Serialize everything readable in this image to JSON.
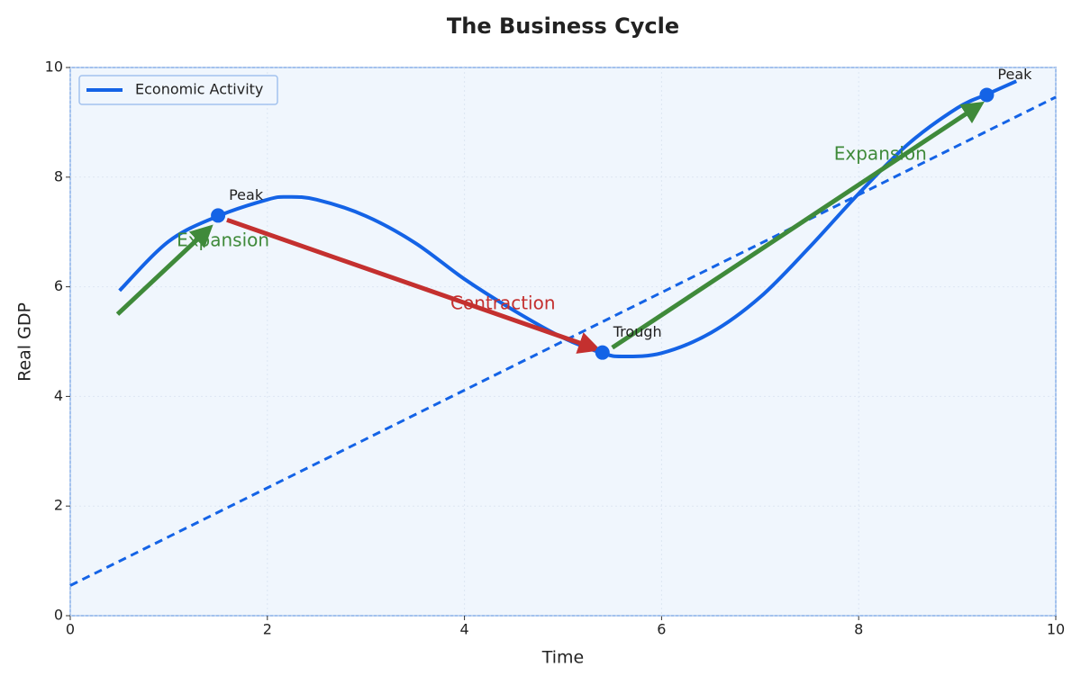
{
  "chart_data": {
    "type": "line",
    "title": "The Business Cycle",
    "x_label": "Time",
    "y_label": "Real GDP",
    "xlim": [
      0,
      10
    ],
    "ylim": [
      0,
      10
    ],
    "xticks": [
      0,
      2,
      4,
      6,
      8,
      10
    ],
    "yticks": [
      0,
      2,
      4,
      6,
      8,
      10
    ],
    "grid": true,
    "legend": "upper left",
    "series": [
      {
        "name": "Economic Activity",
        "color": "#1463e6",
        "x": [
          0.5,
          1.0,
          1.5,
          2.0,
          2.2,
          2.5,
          3.0,
          3.5,
          4.0,
          4.5,
          5.0,
          5.4,
          5.6,
          6.0,
          6.5,
          7.0,
          7.5,
          8.0,
          8.5,
          9.0,
          9.3,
          9.6
        ],
        "values": [
          5.93,
          6.83,
          7.29,
          7.59,
          7.64,
          7.59,
          7.29,
          6.8,
          6.14,
          5.57,
          5.07,
          4.79,
          4.73,
          4.79,
          5.16,
          5.81,
          6.72,
          7.7,
          8.6,
          9.26,
          9.51,
          9.75
        ]
      }
    ],
    "trend": {
      "color": "#1463e6",
      "x": [
        0,
        10
      ],
      "values": [
        0.55,
        9.46
      ]
    },
    "points": [
      {
        "label": "Peak",
        "x": 1.5,
        "y": 7.3
      },
      {
        "label": "Trough",
        "x": 5.4,
        "y": 4.8
      },
      {
        "label": "Peak",
        "x": 9.3,
        "y": 9.5
      }
    ],
    "annotations": [
      {
        "text": "Expansion",
        "x": 1.55,
        "y": 6.83,
        "color": "#3f8a3a",
        "from": [
          0.48,
          5.5
        ],
        "to": [
          1.4,
          7.05
        ]
      },
      {
        "text": "Contraction",
        "x": 4.39,
        "y": 5.68,
        "color": "#c4302f",
        "from": [
          1.59,
          7.22
        ],
        "to": [
          5.32,
          4.88
        ]
      },
      {
        "text": "Expansion",
        "x": 8.22,
        "y": 8.41,
        "color": "#3f8a3a",
        "from": [
          5.5,
          4.89
        ],
        "to": [
          9.22,
          9.31
        ]
      }
    ]
  }
}
